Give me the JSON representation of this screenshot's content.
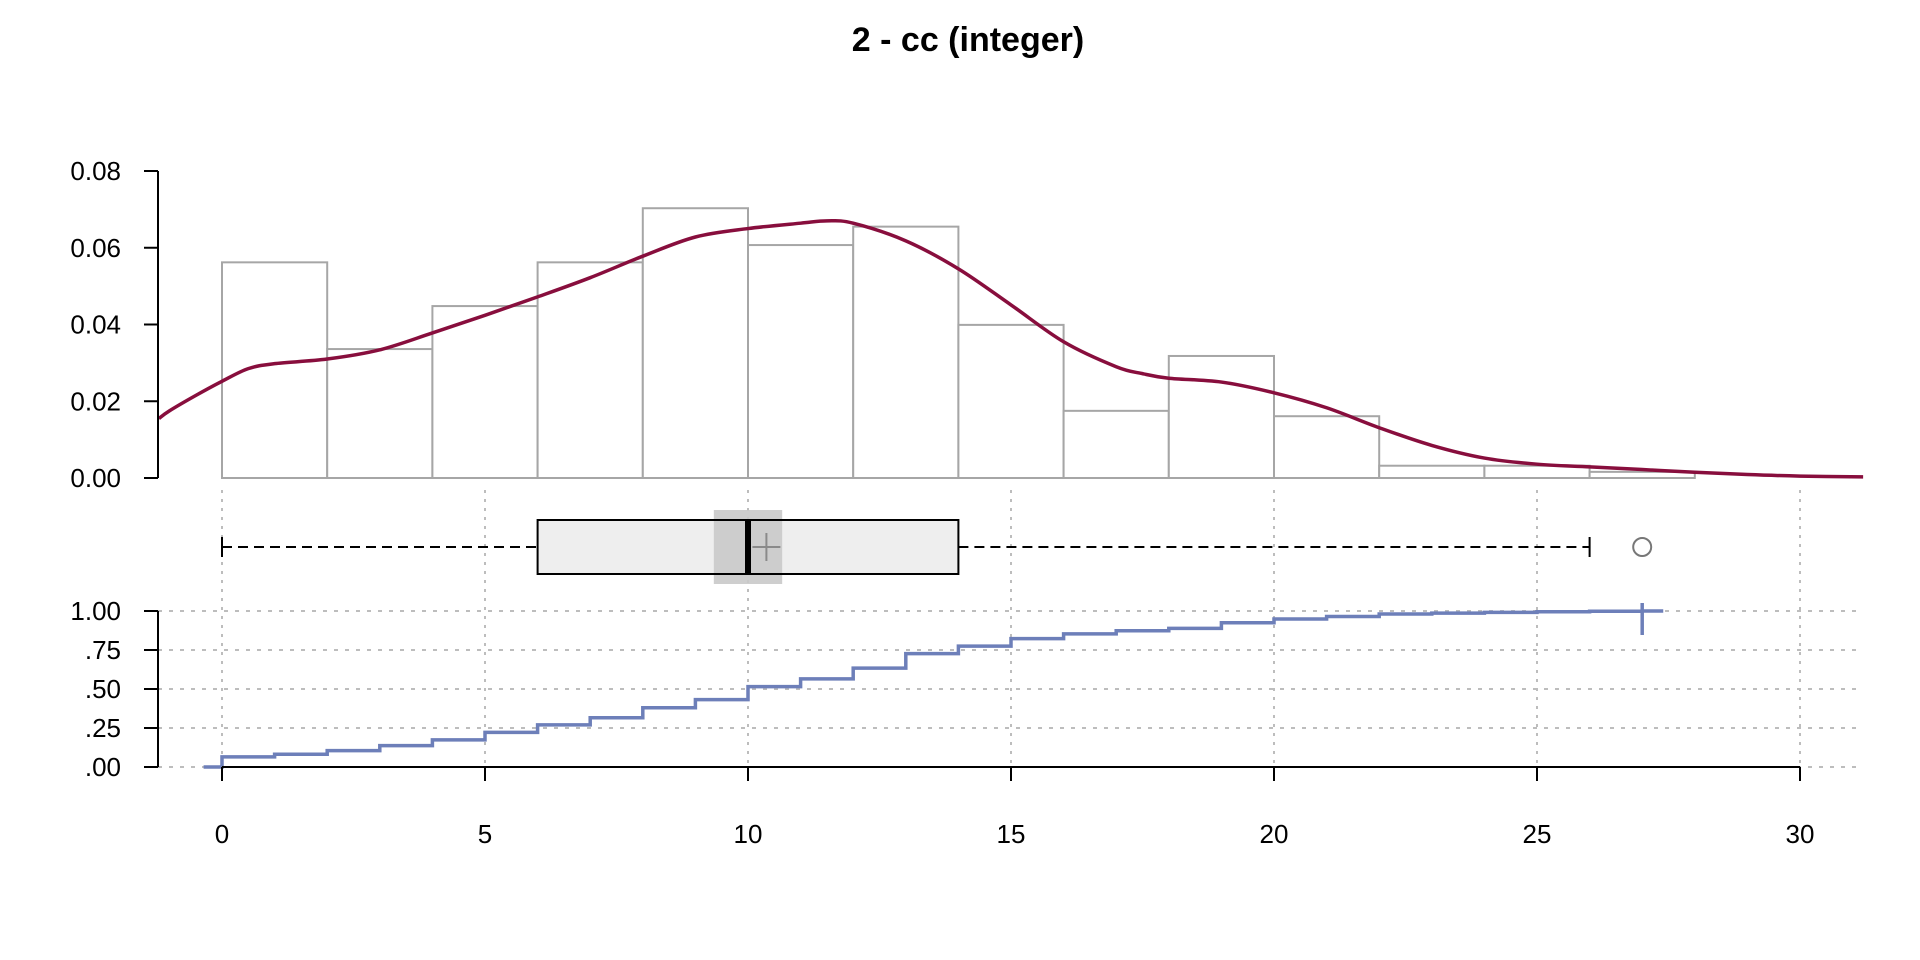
{
  "chart_data": {
    "type": "histogram+density+boxplot+ecdf",
    "title": "2 - cc (integer)",
    "x_axis": {
      "range": [
        -1.2,
        31.2
      ],
      "ticks": [
        0,
        5,
        10,
        15,
        20,
        25,
        30
      ],
      "tick_labels": [
        "0",
        "5",
        "10",
        "15",
        "20",
        "25",
        "30"
      ]
    },
    "histogram": {
      "ylim": [
        0,
        0.08
      ],
      "y_ticks": [
        0,
        0.02,
        0.04,
        0.06,
        0.08
      ],
      "y_tick_labels": [
        "0.00",
        "0.02",
        "0.04",
        "0.06",
        "0.08"
      ],
      "bin_edges": [
        0,
        2,
        4,
        6,
        8,
        10,
        12,
        14,
        16,
        18,
        20,
        22,
        24,
        26,
        28
      ],
      "density": [
        0.0562,
        0.0336,
        0.0448,
        0.0562,
        0.0703,
        0.0607,
        0.0655,
        0.0399,
        0.0175,
        0.0318,
        0.0161,
        0.0032,
        0.0032,
        0.0016
      ],
      "bar_color": "#a6a6a6"
    },
    "density_curve": {
      "color": "#880e3d",
      "x": [
        -1.2,
        -1,
        -0.5,
        0,
        0.5,
        1,
        2,
        3,
        4,
        5,
        6,
        7,
        8,
        9,
        10,
        11,
        11.5,
        12,
        13,
        14,
        15,
        16,
        17,
        17.5,
        18,
        19,
        20,
        21,
        22,
        23,
        24,
        25,
        26,
        27,
        28,
        29,
        30,
        31.2
      ],
      "y": [
        0.0155,
        0.0175,
        0.0215,
        0.0252,
        0.0285,
        0.0298,
        0.031,
        0.0334,
        0.0378,
        0.0424,
        0.0472,
        0.0522,
        0.0578,
        0.0628,
        0.065,
        0.0664,
        0.067,
        0.0664,
        0.0618,
        0.0545,
        0.0451,
        0.0355,
        0.029,
        0.0272,
        0.026,
        0.025,
        0.0222,
        0.0183,
        0.0131,
        0.0085,
        0.0052,
        0.0036,
        0.0029,
        0.0022,
        0.0015,
        0.0009,
        0.0005,
        0.0003
      ]
    },
    "boxplot": {
      "whisker_low": 0,
      "q1": 6,
      "median": 10,
      "mean": 10.35,
      "q3": 14,
      "whisker_high": 26,
      "notch": [
        9.35,
        10.65
      ],
      "outliers": [
        27
      ]
    },
    "ecdf": {
      "color": "#6d7fb9",
      "ylim": [
        0,
        1
      ],
      "y_ticks": [
        0,
        0.25,
        0.5,
        0.75,
        1
      ],
      "y_tick_labels": [
        ".00",
        ".25",
        ".50",
        ".75",
        "1.00"
      ],
      "x": [
        -0.35,
        0,
        1,
        2,
        3,
        4,
        5,
        6,
        7,
        8,
        9,
        10,
        11,
        12,
        13,
        14,
        15,
        16,
        17,
        18,
        19,
        20,
        21,
        22,
        23,
        24,
        25,
        26,
        27,
        27.4
      ],
      "y": [
        0,
        0.065,
        0.082,
        0.105,
        0.137,
        0.174,
        0.222,
        0.27,
        0.316,
        0.38,
        0.432,
        0.515,
        0.565,
        0.634,
        0.727,
        0.775,
        0.823,
        0.853,
        0.873,
        0.889,
        0.925,
        0.949,
        0.965,
        0.981,
        0.986,
        0.991,
        0.995,
        0.998,
        1.0,
        1.0
      ],
      "grid": true
    }
  }
}
